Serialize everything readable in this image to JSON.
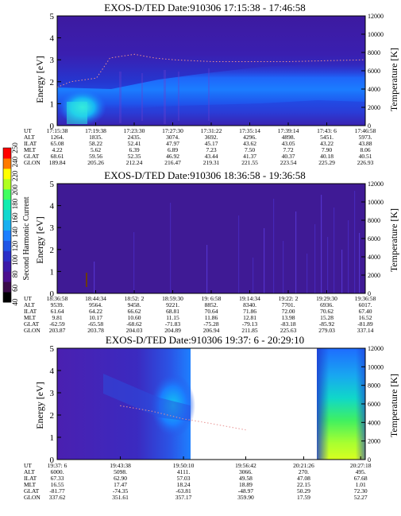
{
  "colorbar": {
    "label": "Second Harmonic Current",
    "ticks": [
      "40",
      "60",
      "80",
      "100",
      "120",
      "140",
      "160",
      "180",
      "200",
      "220",
      "240",
      "250"
    ],
    "colors": [
      "#000000",
      "#3a0a4a",
      "#4b0f8f",
      "#3b1aa8",
      "#2a2fc8",
      "#1f55e6",
      "#1d7fff",
      "#17b0f0",
      "#12d8d0",
      "#10ecb0",
      "#40ff60",
      "#b0ff20",
      "#ffff00",
      "#ff7a00",
      "#ff0000"
    ]
  },
  "panels": [
    {
      "title": "EXOS-D/TED  Date:910306  17:15:38 - 17:46:58",
      "ylabel_left": "Energy [eV]",
      "ylabel_right": "Temperature [K]",
      "left_ticks": [
        "0",
        "1",
        "2",
        "3",
        "4",
        "5"
      ],
      "right_ticks": [
        "0",
        "2000",
        "4000",
        "6000",
        "8000",
        "10000",
        "12000"
      ],
      "table": {
        "row_labels": [
          "UT",
          "ALT",
          "ILAT",
          "MLT",
          "GLAT",
          "GLON"
        ],
        "columns": [
          [
            "17:15:38",
            "1264.",
            "65.08",
            "4.22",
            "68.61",
            "189.84"
          ],
          [
            "17:19:38",
            "1835.",
            "58.22",
            "5.62",
            "59.56",
            "205.26"
          ],
          [
            "17:23:30",
            "2435.",
            "52.41",
            "6.39",
            "52.35",
            "212.24"
          ],
          [
            "17:27:30",
            "3074.",
            "47.97",
            "6.89",
            "46.92",
            "216.47"
          ],
          [
            "17:31:22",
            "3692.",
            "45.17",
            "7.23",
            "43.44",
            "219.31"
          ],
          [
            "17:35:14",
            "4296.",
            "43.62",
            "7.50",
            "41.37",
            "221.55"
          ],
          [
            "17:39:14",
            "4898.",
            "43.05",
            "7.72",
            "40.37",
            "223.54"
          ],
          [
            "17:43: 6",
            "5451.",
            "43.22",
            "7.90",
            "40.18",
            "225.29"
          ],
          [
            "17:46:58",
            "5973.",
            "43.88",
            "8.06",
            "40.51",
            "226.93"
          ]
        ]
      }
    },
    {
      "title": "EXOS-D/TED  Date:910306  18:36:58 - 19:36:58",
      "ylabel_left": "Energy [eV]",
      "ylabel_right": "Temperature [K]",
      "left_ticks": [
        "0",
        "1",
        "2",
        "3",
        "4",
        "5"
      ],
      "right_ticks": [
        "0",
        "2000",
        "4000",
        "6000",
        "8000",
        "10000",
        "12000"
      ],
      "table": {
        "row_labels": [
          "UT",
          "ALT",
          "ILAT",
          "MLT",
          "GLAT",
          "GLON"
        ],
        "columns": [
          [
            "18:36:58",
            "9539.",
            "61.64",
            "9.81",
            "-62.59",
            "203.87"
          ],
          [
            "18:44:34",
            "9564.",
            "64.22",
            "10.17",
            "-65.58",
            "203.78"
          ],
          [
            "18:52: 2",
            "9458.",
            "66.62",
            "10.60",
            "-68.62",
            "204.03"
          ],
          [
            "18:59:30",
            "9221.",
            "68.81",
            "11.15",
            "-71.83",
            "204.89"
          ],
          [
            "19: 6:58",
            "8852.",
            "70.64",
            "11.86",
            "-75.28",
            "206.94"
          ],
          [
            "19:14:34",
            "8340.",
            "71.86",
            "12.81",
            "-79.13",
            "211.85"
          ],
          [
            "19:22: 2",
            "7701.",
            "72.00",
            "13.98",
            "-83.18",
            "225.63"
          ],
          [
            "19:29:30",
            "6936.",
            "70.62",
            "15.28",
            "-85.92",
            "279.03"
          ],
          [
            "19:36:58",
            "6017.",
            "67.40",
            "16.52",
            "-81.89",
            "337.14"
          ]
        ]
      }
    },
    {
      "title": "EXOS-D/TED  Date:910306  19:37: 6 - 20:29:10",
      "ylabel_left": "Energy [eV]",
      "ylabel_right": "Temperature [K]",
      "left_ticks": [
        "0",
        "1",
        "2",
        "3",
        "4",
        "5"
      ],
      "right_ticks": [
        "0",
        "2000",
        "4000",
        "6000",
        "8000",
        "10000",
        "12000"
      ],
      "table": {
        "row_labels": [
          "UT",
          "ALT",
          "ILAT",
          "MLT",
          "GLAT",
          "GLON"
        ],
        "columns": [
          [
            "19:37: 6",
            "6000.",
            "67.33",
            "16.55",
            "-81.77",
            "337.62"
          ],
          [
            "19:43:38",
            "5098.",
            "62.90",
            "17.47",
            "-74.35",
            "351.61"
          ],
          [
            "19:50:10",
            "4111.",
            "57.03",
            "18.24",
            "-63.81",
            "357.17"
          ],
          [
            "19:56:42",
            "3066.",
            "49.58",
            "18.89",
            "-48.97",
            "359.90"
          ],
          [
            "20:21:26",
            "270.",
            "47.08",
            "22.15",
            "50.29",
            "17.59"
          ],
          [
            "20:27:18",
            "495.",
            "67.68",
            "1.01",
            "72.30",
            "52.27"
          ]
        ]
      }
    }
  ],
  "chart_data": [
    {
      "type": "heatmap",
      "title": "EXOS-D/TED  Date:910306  17:15:38 - 17:46:58",
      "ylabel": "Energy [eV]",
      "y2label": "Temperature [K]",
      "ylim": [
        0,
        5
      ],
      "y2lim": [
        0,
        12000
      ],
      "x_ticks": [
        "17:15:38",
        "17:19:38",
        "17:23:30",
        "17:27:30",
        "17:31:22",
        "17:35:14",
        "17:39:14",
        "17:43: 6",
        "17:46:58"
      ],
      "temperature_trace_K": [
        {
          "x": "17:15:38",
          "y": 4200
        },
        {
          "x": "17:17:00",
          "y": 4800
        },
        {
          "x": "17:19:38",
          "y": 5200
        },
        {
          "x": "17:21:00",
          "y": 7400
        },
        {
          "x": "17:23:30",
          "y": 7800
        },
        {
          "x": "17:25:30",
          "y": 7400
        },
        {
          "x": "17:27:30",
          "y": 7200
        },
        {
          "x": "17:31:22",
          "y": 7000
        },
        {
          "x": "17:35:14",
          "y": 7000
        },
        {
          "x": "17:39:14",
          "y": 7000
        },
        {
          "x": "17:43: 6",
          "y": 7100
        },
        {
          "x": "17:46:58",
          "y": 7200
        }
      ]
    },
    {
      "type": "heatmap",
      "title": "EXOS-D/TED  Date:910306  18:36:58 - 19:36:58",
      "ylabel": "Energy [eV]",
      "y2label": "Temperature [K]",
      "ylim": [
        0,
        5
      ],
      "y2lim": [
        0,
        12000
      ],
      "x_ticks": [
        "18:36:58",
        "18:44:34",
        "18:52: 2",
        "18:59:30",
        "19: 6:58",
        "19:14:34",
        "19:22: 2",
        "19:29:30",
        "19:36:58"
      ]
    },
    {
      "type": "heatmap",
      "title": "EXOS-D/TED  Date:910306  19:37: 6 - 20:29:10",
      "ylabel": "Energy [eV]",
      "y2label": "Temperature [K]",
      "ylim": [
        0,
        5
      ],
      "y2lim": [
        0,
        12000
      ],
      "x_ticks": [
        "19:37: 6",
        "19:43:38",
        "19:50:10",
        "19:56:42",
        "20:21:26",
        "20:27:18"
      ],
      "temperature_trace_K": [
        {
          "x": "19:43:38",
          "y": 5800
        },
        {
          "x": "19:47:00",
          "y": 5200
        },
        {
          "x": "19:50:10",
          "y": 4400
        },
        {
          "x": "19:53:00",
          "y": 3900
        },
        {
          "x": "19:56:42",
          "y": 3200
        }
      ]
    }
  ]
}
